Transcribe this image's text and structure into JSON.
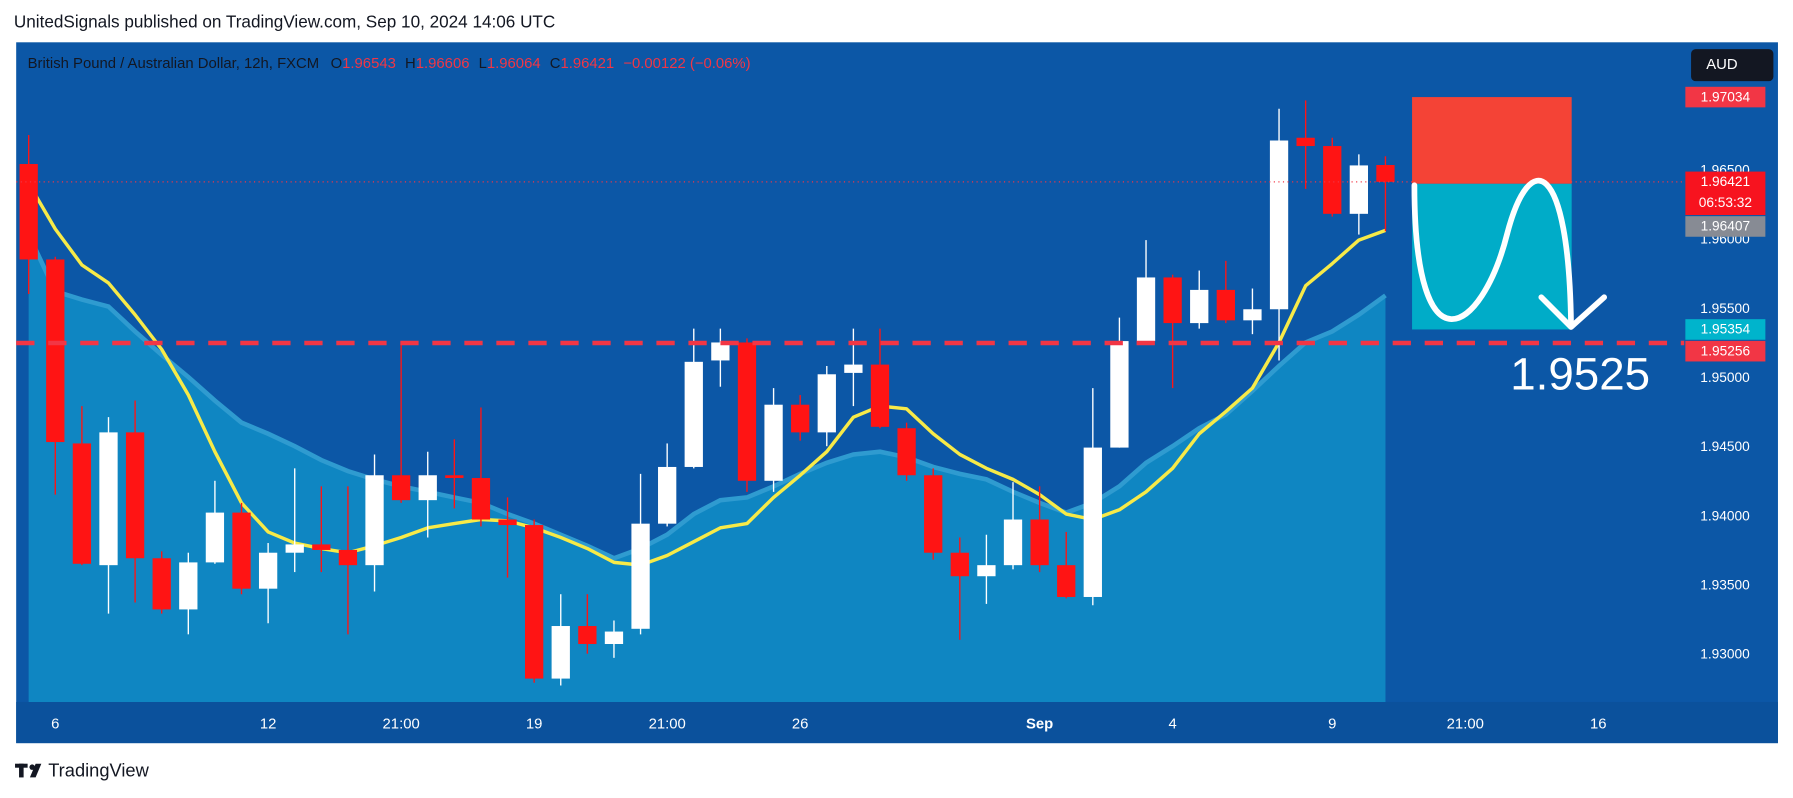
{
  "header": {
    "text": "UnitedSignals published on TradingView.com, Sep 10, 2024 14:06 UTC"
  },
  "footer": {
    "brand": "TradingView"
  },
  "chart_data": {
    "type": "candlestick",
    "title": "British Pound / Australian Dollar, 12h, FXCM",
    "ohlc_prefixes": [
      "O",
      "H",
      "L",
      "C"
    ],
    "change_label": "−0.00122 (−0.06%)",
    "currency": "AUD",
    "open": [
      1.9655,
      1.9586,
      1.9453,
      1.9365,
      1.9461,
      1.937,
      1.9333,
      1.9367,
      1.9403,
      1.9348,
      1.9374,
      1.938,
      1.9376,
      1.9365,
      1.943,
      1.9412,
      1.943,
      1.9428,
      1.9398,
      1.9394,
      1.9283,
      1.9321,
      1.9308,
      1.9319,
      1.9395,
      1.9436,
      1.9513,
      1.9526,
      1.9426,
      1.9481,
      1.9461,
      1.9504,
      1.951,
      1.9464,
      1.943,
      1.9374,
      1.9357,
      1.9365,
      1.9398,
      1.9365,
      1.9342,
      1.945,
      1.9527,
      1.9573,
      1.954,
      1.9564,
      1.9542,
      1.955,
      1.9674,
      1.9668,
      1.9619,
      1.96543
    ],
    "high": [
      1.9676,
      1.9588,
      1.948,
      1.9472,
      1.9484,
      1.9375,
      1.9374,
      1.9426,
      1.941,
      1.9381,
      1.9435,
      1.9422,
      1.9422,
      1.9445,
      1.9526,
      1.9447,
      1.9456,
      1.9479,
      1.9414,
      1.9398,
      1.9344,
      1.9344,
      1.9325,
      1.9431,
      1.9453,
      1.9536,
      1.9536,
      1.9529,
      1.9493,
      1.9488,
      1.9509,
      1.9536,
      1.9536,
      1.9468,
      1.9435,
      1.9385,
      1.9387,
      1.9425,
      1.9422,
      1.9389,
      1.9493,
      1.9544,
      1.96,
      1.9575,
      1.9578,
      1.9585,
      1.9565,
      1.9695,
      1.9701,
      1.9674,
      1.9662,
      1.96606
    ],
    "low": [
      1.9561,
      1.9416,
      1.9365,
      1.933,
      1.9338,
      1.933,
      1.9315,
      1.9366,
      1.9344,
      1.9323,
      1.936,
      1.936,
      1.9315,
      1.9346,
      1.941,
      1.9385,
      1.9406,
      1.9393,
      1.9356,
      1.928,
      1.9278,
      1.9301,
      1.9298,
      1.9315,
      1.9393,
      1.9435,
      1.9494,
      1.9418,
      1.9418,
      1.9455,
      1.9451,
      1.948,
      1.9464,
      1.9426,
      1.9369,
      1.9311,
      1.9337,
      1.9362,
      1.936,
      1.9341,
      1.9336,
      1.945,
      1.9526,
      1.9493,
      1.9536,
      1.954,
      1.9532,
      1.9513,
      1.9637,
      1.9617,
      1.9604,
      1.96064
    ],
    "close": [
      1.9586,
      1.9454,
      1.9366,
      1.9461,
      1.937,
      1.9333,
      1.9367,
      1.9403,
      1.9348,
      1.9374,
      1.938,
      1.9376,
      1.9365,
      1.943,
      1.9412,
      1.943,
      1.9428,
      1.9398,
      1.9394,
      1.9283,
      1.9321,
      1.9308,
      1.9317,
      1.9395,
      1.9436,
      1.9512,
      1.9526,
      1.9426,
      1.9481,
      1.9461,
      1.9503,
      1.951,
      1.9465,
      1.943,
      1.9374,
      1.9357,
      1.9365,
      1.9398,
      1.9365,
      1.9342,
      1.945,
      1.9527,
      1.9573,
      1.954,
      1.9564,
      1.9542,
      1.955,
      1.9672,
      1.9668,
      1.9619,
      1.9654,
      1.96421
    ],
    "up_color": "#ffffff",
    "down_color": "#ff1414",
    "ma_fast": {
      "color": "#f7ea48",
      "values": [
        1.9641,
        1.9608,
        1.9582,
        1.9569,
        1.9546,
        1.9521,
        1.9488,
        1.9447,
        1.941,
        1.9389,
        1.9381,
        1.9377,
        1.9374,
        1.9379,
        1.9385,
        1.9392,
        1.9395,
        1.9398,
        1.9397,
        1.9392,
        1.9385,
        1.9377,
        1.9367,
        1.9365,
        1.9372,
        1.9382,
        1.9392,
        1.9395,
        1.9414,
        1.943,
        1.9447,
        1.9472,
        1.948,
        1.9478,
        1.946,
        1.9445,
        1.9435,
        1.9427,
        1.9416,
        1.9402,
        1.9398,
        1.9405,
        1.9418,
        1.9435,
        1.946,
        1.9476,
        1.9493,
        1.9526,
        1.9567,
        1.9583,
        1.96,
        1.9607
      ]
    },
    "ma_slow": {
      "color": "#2f9bd0",
      "area_color": "#0f86c2",
      "values": [
        1.9604,
        1.9563,
        1.9557,
        1.9552,
        1.9534,
        1.9517,
        1.9501,
        1.9484,
        1.9468,
        1.946,
        1.9451,
        1.9441,
        1.9433,
        1.9427,
        1.9422,
        1.9418,
        1.9414,
        1.941,
        1.9402,
        1.9395,
        1.9387,
        1.9379,
        1.937,
        1.9377,
        1.9387,
        1.9402,
        1.9412,
        1.9414,
        1.9422,
        1.9431,
        1.9439,
        1.9445,
        1.9447,
        1.9443,
        1.9436,
        1.9431,
        1.9427,
        1.9418,
        1.941,
        1.9403,
        1.941,
        1.9422,
        1.9439,
        1.9451,
        1.9464,
        1.9474,
        1.9491,
        1.9509,
        1.9526,
        1.9534,
        1.9546,
        1.956
      ]
    },
    "xlim": [
      -0.47,
      62.23
    ],
    "xticks": [
      {
        "value": 1,
        "label": "6"
      },
      {
        "value": 9,
        "label": "12"
      },
      {
        "value": 14,
        "label": "21:00"
      },
      {
        "value": 19,
        "label": "19"
      },
      {
        "value": 24,
        "label": "21:00"
      },
      {
        "value": 29,
        "label": "26"
      },
      {
        "value": 38,
        "label": "Sep"
      },
      {
        "value": 43,
        "label": "4"
      },
      {
        "value": 49,
        "label": "9"
      },
      {
        "value": 54,
        "label": "21:00"
      },
      {
        "value": 59,
        "label": "16"
      }
    ],
    "ylim": [
      1.92661,
      1.9743
    ],
    "yticks": [
      {
        "value": 1.93,
        "label": "1.93000"
      },
      {
        "value": 1.935,
        "label": "1.93500"
      },
      {
        "value": 1.94,
        "label": "1.94000"
      },
      {
        "value": 1.945,
        "label": "1.94500"
      },
      {
        "value": 1.95,
        "label": "1.95000"
      },
      {
        "value": 1.955,
        "label": "1.95500"
      },
      {
        "value": 1.96,
        "label": "1.96000"
      },
      {
        "value": 1.965,
        "label": "1.96500"
      }
    ],
    "price_labels": [
      {
        "value": 1.97034,
        "color": "#f23645"
      },
      {
        "value": 1.96421,
        "color": "#f7131f",
        "countdown": "06:53:32"
      },
      {
        "value": 1.96407,
        "color": "#878b94"
      },
      {
        "value": 1.95354,
        "color": "#00b4cc"
      },
      {
        "value": 1.95256,
        "color": "#f23645"
      }
    ],
    "lines": [
      {
        "value": 1.95256,
        "color": "#f23645",
        "style": "dashed"
      },
      {
        "value": 1.96421,
        "color": "#f23645",
        "style": "dotted"
      }
    ],
    "position": {
      "stop": 1.97034,
      "entry": 1.96407,
      "target": 1.95354,
      "start": 52,
      "end": 58,
      "stop_color": "#f44336",
      "target_color": "#00acc8"
    },
    "annotation": "1.9525"
  }
}
